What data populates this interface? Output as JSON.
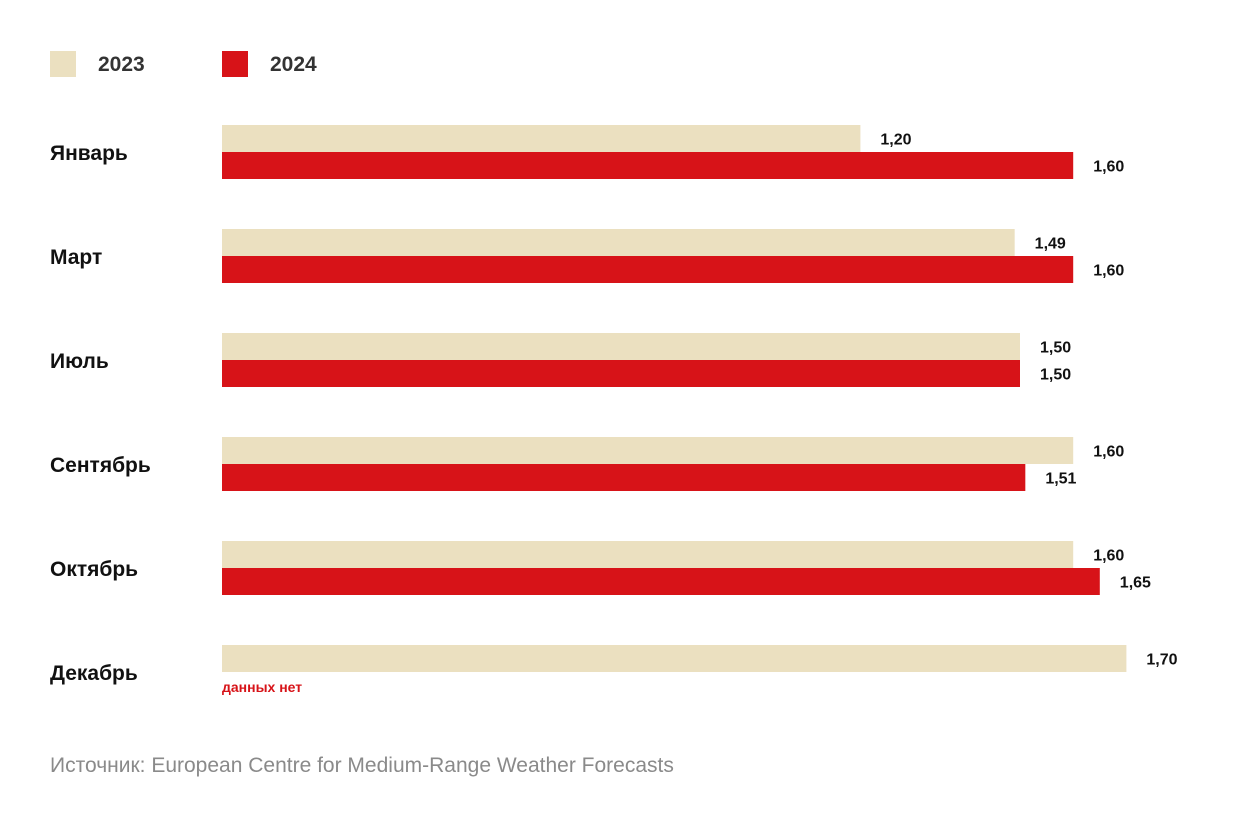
{
  "colors": {
    "y2023": "#ebe0c0",
    "y2024": "#d71318"
  },
  "legend": [
    {
      "label": "2023",
      "color": "#ebe0c0"
    },
    {
      "label": "2024",
      "color": "#d71318"
    }
  ],
  "no_data_label": "данных нет",
  "source": "Источник: European Centre for Medium-Range Weather Forecasts",
  "chart_data": {
    "type": "bar",
    "orientation": "horizontal",
    "categories": [
      "Январь",
      "Март",
      "Июль",
      "Сентябрь",
      "Октябрь",
      "Декабрь"
    ],
    "series": [
      {
        "name": "2023",
        "values": [
          1.2,
          1.49,
          1.5,
          1.6,
          1.6,
          1.7
        ],
        "labels": [
          "1,20",
          "1,49",
          "1,50",
          "1,60",
          "1,60",
          "1,70"
        ]
      },
      {
        "name": "2024",
        "values": [
          1.6,
          1.6,
          1.5,
          1.51,
          1.65,
          null
        ],
        "labels": [
          "1,60",
          "1,60",
          "1,50",
          "1,51",
          "1,65",
          null
        ]
      }
    ],
    "xlim": [
      0,
      1.7
    ],
    "grid": false,
    "legend_position": "top-left"
  }
}
